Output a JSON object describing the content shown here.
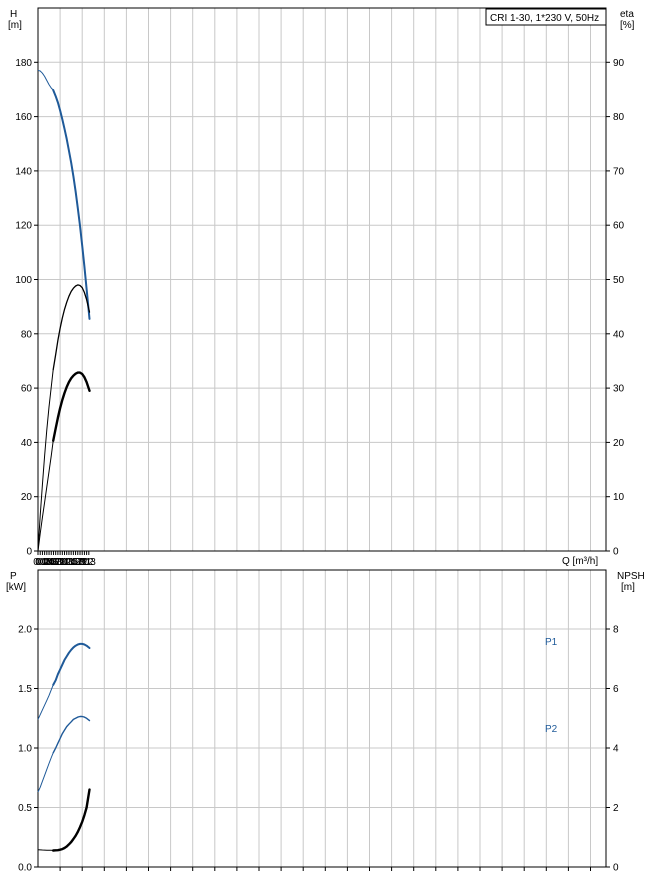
{
  "chart_data": [
    {
      "type": "line",
      "legend_text": "CRI 1-30, 1*230 V, 50Hz",
      "legend_position": "top-right",
      "grid": true,
      "x_label": "Q [m³/h]",
      "x_label_name": "Q",
      "x_label_unit": "[m³/h]",
      "x_range": [
        0,
        2.5
      ],
      "x_ticks": [
        "0",
        "0.1",
        "0.2",
        "0.3",
        "0.4",
        "0.5",
        "0.6",
        "0.7",
        "0.8",
        "0.9",
        "1.0",
        "1.1",
        "1.2",
        "1.3",
        "1.4",
        "1.5",
        "1.6",
        "1.7",
        "1.8",
        "1.9",
        "2.0",
        "2.1",
        "2.2",
        "2.3"
      ],
      "y_left_label_name": "H",
      "y_left_label_unit": "[m]",
      "y_left_range": [
        0,
        200
      ],
      "y_left_ticks": [
        "0",
        "20",
        "40",
        "60",
        "80",
        "100",
        "120",
        "140",
        "160",
        "180"
      ],
      "y_right_label_name": "eta",
      "y_right_label_unit": "[%]",
      "y_right_range": [
        0,
        100
      ],
      "y_right_ticks": [
        "0",
        "10",
        "20",
        "30",
        "40",
        "50",
        "60",
        "70",
        "80",
        "90"
      ],
      "operating_range": [
        0.69,
        2.33
      ],
      "series": [
        {
          "axis": "left",
          "color": "#1f5a99",
          "x": [
            0,
            0.1,
            0.2,
            0.3,
            0.4,
            0.5,
            0.6,
            0.69,
            0.8,
            0.9,
            1.0,
            1.1,
            1.2,
            1.3,
            1.4,
            1.5,
            1.6,
            1.7,
            1.8,
            1.9,
            2.0,
            2.1,
            2.2,
            2.33
          ],
          "y": [
            177,
            176.8,
            176,
            174.8,
            173.3,
            171.8,
            170.5,
            169.8,
            167.5,
            165.2,
            162.3,
            159,
            155.5,
            151.8,
            147.5,
            143,
            138,
            132.5,
            126.3,
            119.8,
            112.5,
            104.8,
            96.5,
            85.5
          ]
        },
        {
          "axis": "right",
          "color": "#000000",
          "x": [
            0,
            0.1,
            0.2,
            0.3,
            0.4,
            0.5,
            0.6,
            0.69,
            0.8,
            0.9,
            1.0,
            1.1,
            1.2,
            1.3,
            1.4,
            1.5,
            1.6,
            1.7,
            1.8,
            1.9,
            2.0,
            2.1,
            2.2,
            2.33
          ],
          "y": [
            0,
            6.5,
            12.2,
            17.5,
            22.3,
            26.5,
            30.3,
            33.4,
            36.2,
            38.8,
            41,
            42.9,
            44.5,
            45.8,
            46.9,
            47.8,
            48.4,
            48.8,
            49,
            48.9,
            48.5,
            47.6,
            46.3,
            44
          ]
        },
        {
          "axis": "left",
          "color": "#000000",
          "x": [
            0,
            0.1,
            0.2,
            0.3,
            0.4,
            0.5,
            0.6,
            0.69,
            0.8,
            0.9,
            1.0,
            1.1,
            1.2,
            1.3,
            1.4,
            1.5,
            1.6,
            1.7,
            1.8,
            1.9,
            2.0,
            2.1,
            2.2,
            2.33
          ],
          "y": [
            0,
            6.4,
            12.3,
            17.9,
            23.6,
            29.2,
            35.2,
            40.6,
            45.2,
            49.1,
            52.6,
            55.6,
            58.2,
            60.4,
            62.2,
            63.6,
            64.6,
            65.3,
            65.7,
            65.7,
            65.2,
            64,
            62.2,
            59
          ]
        }
      ]
    },
    {
      "type": "line",
      "grid": true,
      "x_range": [
        0,
        2.5
      ],
      "y_left_label_name": "P",
      "y_left_label_unit": "[kW]",
      "y_left_range": [
        0,
        2.0
      ],
      "y_left_ticks": [
        "0.0",
        "0.5",
        "1.0",
        "1.5",
        "2.0"
      ],
      "y_right_label_name": "NPSH",
      "y_right_label_unit": "[m]",
      "y_right_range": [
        0,
        8
      ],
      "y_right_ticks": [
        "0",
        "2",
        "4",
        "6",
        "8"
      ],
      "operating_range": [
        0.69,
        2.33
      ],
      "series": [
        {
          "name": "P1",
          "axis": "left",
          "color": "#1f5a99",
          "x": [
            0,
            0.1,
            0.2,
            0.3,
            0.4,
            0.5,
            0.6,
            0.69,
            0.8,
            0.9,
            1.0,
            1.1,
            1.2,
            1.3,
            1.4,
            1.5,
            1.6,
            1.7,
            1.8,
            1.9,
            2.0,
            2.1,
            2.2,
            2.33
          ],
          "y": [
            1.24,
            1.28,
            1.32,
            1.36,
            1.4,
            1.44,
            1.49,
            1.53,
            1.57,
            1.62,
            1.66,
            1.7,
            1.74,
            1.77,
            1.8,
            1.825,
            1.845,
            1.86,
            1.87,
            1.875,
            1.875,
            1.87,
            1.86,
            1.84
          ]
        },
        {
          "name": "P2",
          "axis": "left",
          "color": "#1f5a99",
          "x": [
            0,
            0.1,
            0.2,
            0.3,
            0.4,
            0.5,
            0.6,
            0.69,
            0.8,
            0.9,
            1.0,
            1.1,
            1.2,
            1.3,
            1.4,
            1.5,
            1.6,
            1.7,
            1.8,
            1.9,
            2.0,
            2.1,
            2.2,
            2.33
          ],
          "y": [
            0.63,
            0.67,
            0.72,
            0.77,
            0.82,
            0.87,
            0.92,
            0.96,
            1.0,
            1.04,
            1.08,
            1.12,
            1.15,
            1.18,
            1.2,
            1.22,
            1.24,
            1.25,
            1.26,
            1.265,
            1.265,
            1.26,
            1.25,
            1.23
          ]
        },
        {
          "axis": "right",
          "color": "#000000",
          "x": [
            0,
            0.2,
            0.4,
            0.6,
            0.69,
            0.8,
            0.9,
            1.0,
            1.1,
            1.2,
            1.3,
            1.4,
            1.5,
            1.6,
            1.7,
            1.8,
            1.9,
            2.0,
            2.1,
            2.2,
            2.33
          ],
          "y": [
            0.58,
            0.57,
            0.565,
            0.56,
            0.555,
            0.56,
            0.565,
            0.58,
            0.6,
            0.64,
            0.69,
            0.76,
            0.84,
            0.94,
            1.05,
            1.18,
            1.34,
            1.52,
            1.74,
            2.0,
            2.6
          ]
        }
      ]
    }
  ]
}
